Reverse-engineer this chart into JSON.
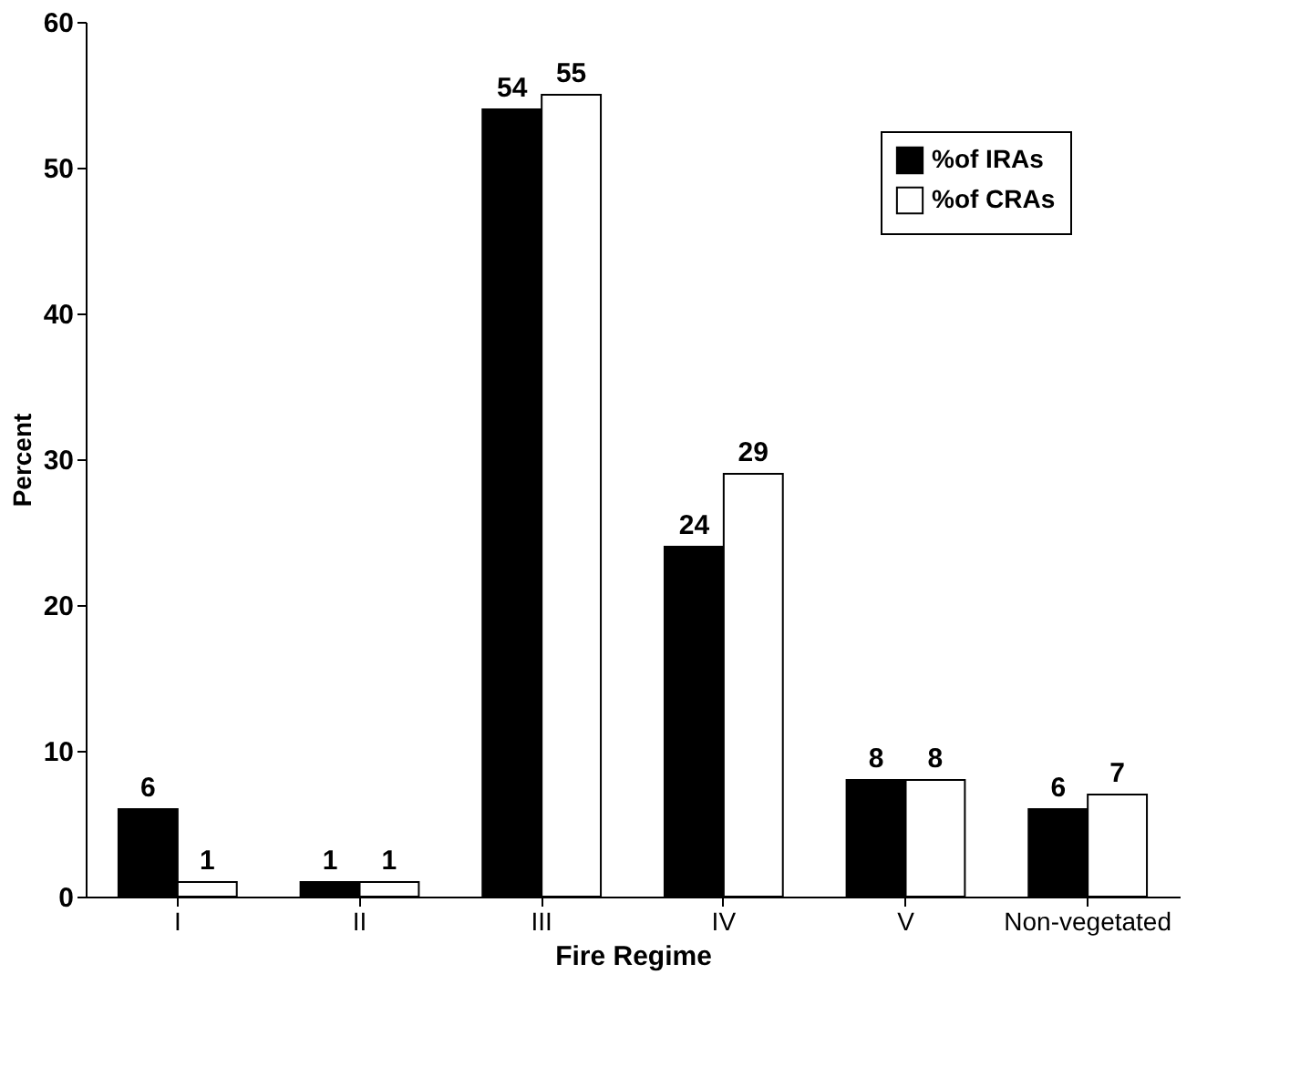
{
  "chart_data": {
    "type": "bar",
    "xlabel": "Fire Regime",
    "ylabel": "Percent",
    "categories": [
      "I",
      "II",
      "III",
      "IV",
      "V",
      "Non-vegetated"
    ],
    "series": [
      {
        "name": "%of IRAs",
        "color": "#000000",
        "values": [
          6,
          1,
          54,
          24,
          8,
          6
        ]
      },
      {
        "name": "%of CRAs",
        "color": "#ffffff",
        "values": [
          1,
          1,
          55,
          29,
          8,
          7
        ]
      }
    ],
    "ylim": [
      0,
      60
    ],
    "yticks": [
      0,
      10,
      20,
      30,
      40,
      50,
      60
    ],
    "data_labels": true,
    "legend": "top right",
    "grid": false
  }
}
